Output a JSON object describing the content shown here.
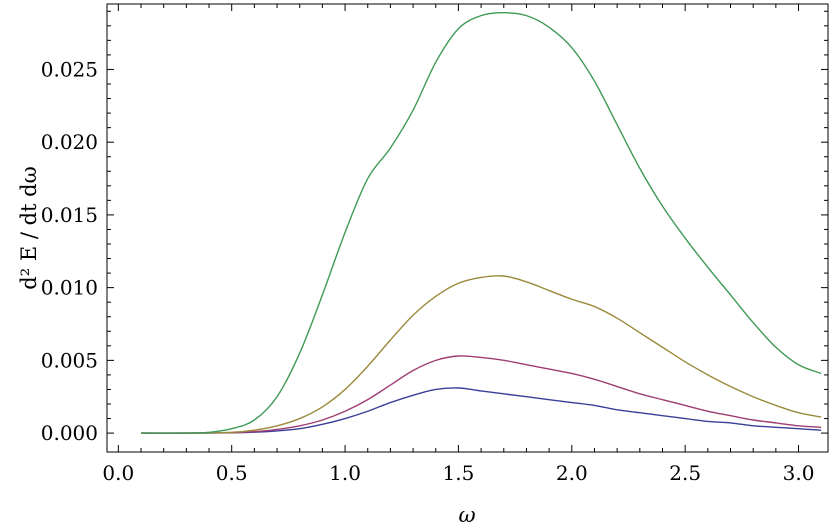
{
  "chart_data": {
    "type": "line",
    "title": "",
    "xlabel": "ω",
    "ylabel": "d² E / dt dω",
    "xlim": [
      -0.05,
      3.13
    ],
    "ylim": [
      -0.0013,
      0.0295
    ],
    "xticks": [
      0.0,
      0.5,
      1.0,
      1.5,
      2.0,
      2.5,
      3.0
    ],
    "xtick_labels": [
      "0.0",
      "0.5",
      "1.0",
      "1.5",
      "2.0",
      "2.5",
      "3.0"
    ],
    "yticks": [
      0.0,
      0.005,
      0.01,
      0.015,
      0.02,
      0.025
    ],
    "ytick_labels": [
      "0.000",
      "0.005",
      "0.010",
      "0.015",
      "0.020",
      "0.025"
    ],
    "grid": false,
    "legend": "none",
    "series": [
      {
        "color": "#3a3f9a",
        "x": [
          0.1,
          0.3,
          0.5,
          0.6,
          0.7,
          0.8,
          0.9,
          1.0,
          1.1,
          1.2,
          1.3,
          1.4,
          1.5,
          1.6,
          1.7,
          1.8,
          1.9,
          2.0,
          2.1,
          2.2,
          2.3,
          2.4,
          2.5,
          2.6,
          2.7,
          2.8,
          2.9,
          3.0,
          3.1
        ],
        "y": [
          0.0,
          0.0,
          2e-05,
          6e-05,
          0.00015,
          0.0003,
          0.0006,
          0.001,
          0.0015,
          0.0021,
          0.0026,
          0.003,
          0.0031,
          0.0029,
          0.0027,
          0.0025,
          0.0023,
          0.0021,
          0.0019,
          0.0016,
          0.0014,
          0.0012,
          0.001,
          0.0008,
          0.0007,
          0.0005,
          0.0004,
          0.0003,
          0.0002
        ]
      },
      {
        "color": "#9e3d72",
        "x": [
          0.1,
          0.3,
          0.5,
          0.6,
          0.7,
          0.8,
          0.9,
          1.0,
          1.1,
          1.2,
          1.3,
          1.4,
          1.5,
          1.6,
          1.7,
          1.8,
          1.9,
          2.0,
          2.1,
          2.2,
          2.3,
          2.4,
          2.5,
          2.6,
          2.7,
          2.8,
          2.9,
          3.0,
          3.1
        ],
        "y": [
          0.0,
          0.0,
          3e-05,
          0.0001,
          0.00025,
          0.0005,
          0.0009,
          0.0015,
          0.0023,
          0.0033,
          0.0043,
          0.005,
          0.0053,
          0.0052,
          0.005,
          0.0047,
          0.0044,
          0.0041,
          0.0037,
          0.0032,
          0.0027,
          0.0023,
          0.0019,
          0.0015,
          0.0012,
          0.0009,
          0.0007,
          0.0005,
          0.0004
        ]
      },
      {
        "color": "#9a8a3c",
        "x": [
          0.1,
          0.3,
          0.5,
          0.6,
          0.7,
          0.8,
          0.9,
          1.0,
          1.1,
          1.2,
          1.3,
          1.4,
          1.5,
          1.6,
          1.7,
          1.8,
          1.9,
          2.0,
          2.1,
          2.2,
          2.3,
          2.4,
          2.5,
          2.6,
          2.7,
          2.8,
          2.9,
          3.0,
          3.1
        ],
        "y": [
          0.0,
          0.0,
          5e-05,
          0.0002,
          0.0005,
          0.001,
          0.0018,
          0.003,
          0.0046,
          0.0064,
          0.0081,
          0.0094,
          0.0103,
          0.0107,
          0.0108,
          0.0104,
          0.0098,
          0.0092,
          0.0087,
          0.0079,
          0.0069,
          0.0059,
          0.0049,
          0.004,
          0.0032,
          0.0025,
          0.0019,
          0.0014,
          0.0011
        ]
      },
      {
        "color": "#3f9a55",
        "x": [
          0.1,
          0.3,
          0.4,
          0.5,
          0.6,
          0.7,
          0.8,
          0.9,
          1.0,
          1.1,
          1.2,
          1.3,
          1.4,
          1.5,
          1.6,
          1.7,
          1.8,
          1.9,
          2.0,
          2.1,
          2.2,
          2.3,
          2.4,
          2.5,
          2.6,
          2.7,
          2.8,
          2.9,
          3.0,
          3.1
        ],
        "y": [
          0.0,
          0.0,
          5e-05,
          0.0003,
          0.0009,
          0.0025,
          0.0055,
          0.0095,
          0.0138,
          0.0175,
          0.0196,
          0.0222,
          0.0255,
          0.0278,
          0.0287,
          0.0289,
          0.0287,
          0.0279,
          0.0265,
          0.0242,
          0.0212,
          0.0182,
          0.0156,
          0.0134,
          0.0114,
          0.0095,
          0.0076,
          0.0059,
          0.0047,
          0.0041
        ]
      }
    ]
  }
}
